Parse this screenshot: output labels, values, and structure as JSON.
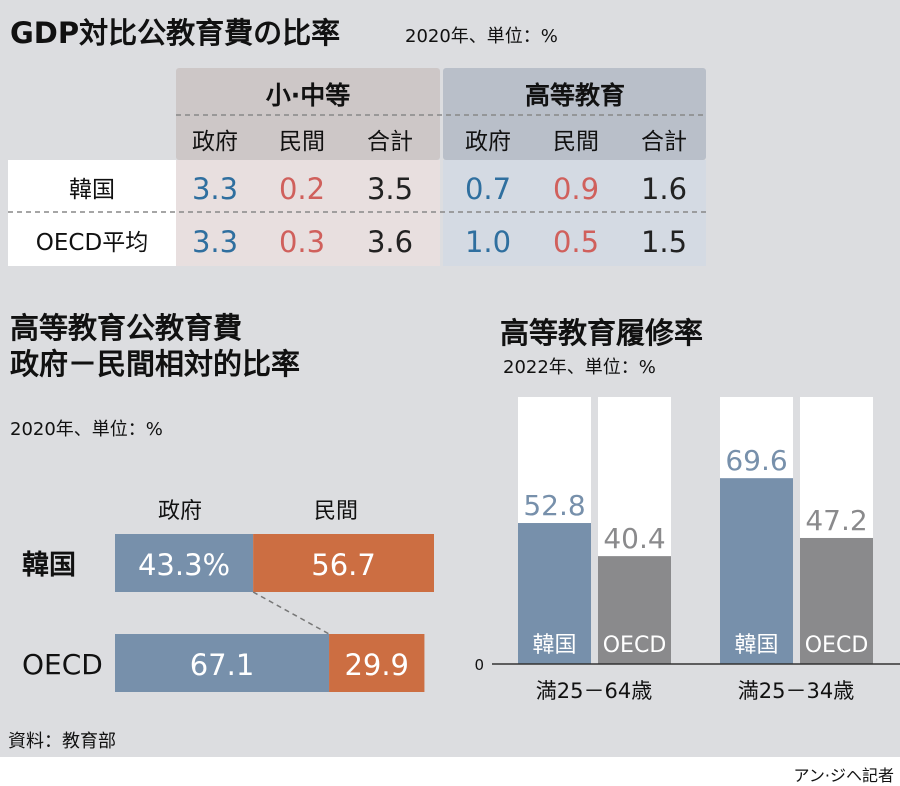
{
  "title": "GDP対比公教育費の比率",
  "subtitle": "2020年、単位：%",
  "colors": {
    "gov": "#2f6f9f",
    "private": "#d0605c",
    "total": "#222222",
    "bar_gov": "#7790ab",
    "bar_private": "#cc6e42",
    "korea_rate": "#7790ab",
    "oecd_rate": "#8a8a8c"
  },
  "chart_data": [
    {
      "type": "table",
      "group_headers": [
        "小·中等",
        "高等教育"
      ],
      "column_headers": [
        "政府",
        "民間",
        "合計",
        "政府",
        "民間",
        "合計"
      ],
      "rows": [
        {
          "label": "韓国",
          "values": [
            "3.3",
            "0.2",
            "3.5",
            "0.7",
            "0.9",
            "1.6"
          ]
        },
        {
          "label": "OECD平均",
          "values": [
            "3.3",
            "0.3",
            "3.6",
            "1.0",
            "0.5",
            "1.5"
          ]
        }
      ]
    },
    {
      "type": "bar",
      "stacked": true,
      "orientation": "horizontal",
      "title": "高等教育公教育費\n政府－民間相対的比率",
      "title_lines": [
        "高等教育公教育費",
        "政府－民間相対的比率"
      ],
      "subtitle": "2020年、単位：%",
      "categories": [
        "韓国",
        "OECD"
      ],
      "series": [
        {
          "name": "政府",
          "values": [
            43.3,
            67.1
          ],
          "labels": [
            "43.3%",
            "67.1"
          ]
        },
        {
          "name": "民間",
          "values": [
            56.7,
            29.9
          ],
          "labels": [
            "56.7",
            "29.9"
          ]
        }
      ]
    },
    {
      "type": "bar",
      "title": "高等教育履修率",
      "subtitle": "2022年、単位：%",
      "groups": [
        "満25－64歳",
        "満25－34歳"
      ],
      "ylim": [
        0,
        100
      ],
      "y_tick": "0",
      "bars": [
        {
          "group": "満25－64歳",
          "name": "韓国",
          "value": 52.8
        },
        {
          "group": "満25－64歳",
          "name": "OECD",
          "value": 40.4
        },
        {
          "group": "満25－34歳",
          "name": "韓国",
          "value": 69.6
        },
        {
          "group": "満25－34歳",
          "name": "OECD",
          "value": 47.2
        }
      ]
    }
  ],
  "source": "資料：教育部",
  "credit": "アン·ジヘ記者"
}
